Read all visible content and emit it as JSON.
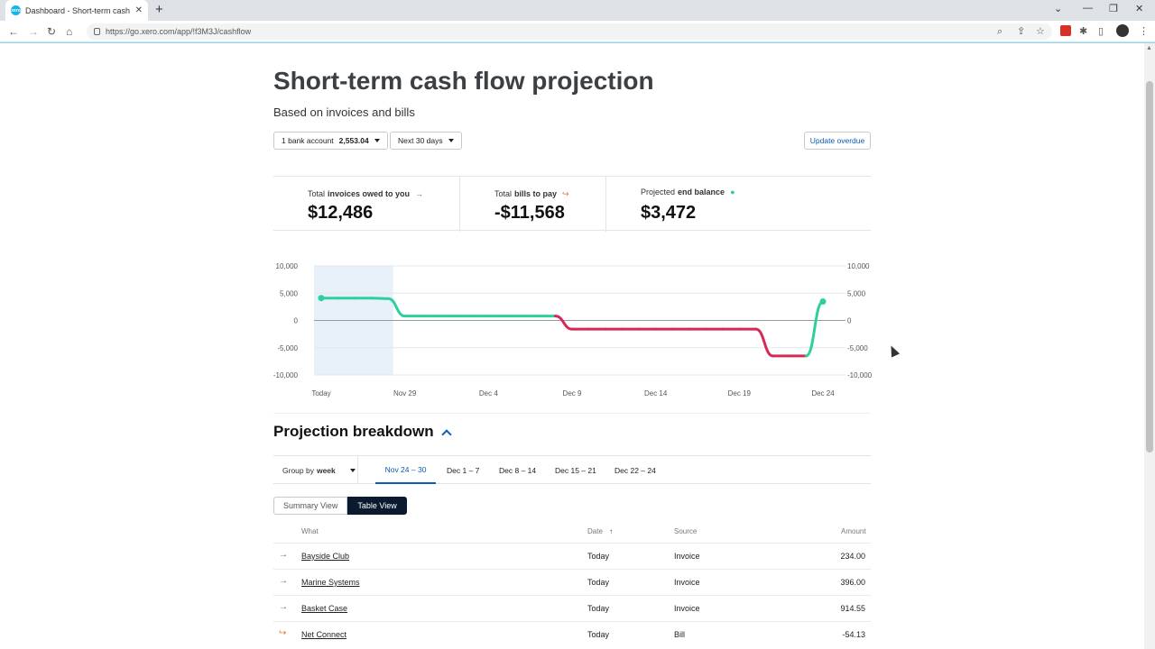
{
  "browser": {
    "tab_title": "Dashboard - Short-term cash flo",
    "favicon_text": "xero",
    "url": "https://go.xero.com/app/!f3M3J/cashflow"
  },
  "page": {
    "title": "Short-term cash flow projection",
    "subtitle": "Based on invoices and bills",
    "bank_account_label": "1 bank account",
    "bank_account_balance": "2,553.04",
    "period_label": "Next 30 days",
    "update_button": "Update overdue"
  },
  "summary": {
    "invoices": {
      "label_prefix": "Total",
      "label_bold": "invoices owed to you",
      "value": "$12,486",
      "icon": "arrow-in-icon",
      "color": "#5a6a8a"
    },
    "bills": {
      "label_prefix": "Total",
      "label_bold": "bills to pay",
      "value": "-$11,568",
      "icon": "arrow-out-icon",
      "color": "#e8743b"
    },
    "balance": {
      "label_prefix": "Projected",
      "label_bold": "end balance",
      "value": "$3,472",
      "icon": "balance-dot-icon",
      "color": "#2ccf9d"
    }
  },
  "chart_data": {
    "type": "line",
    "y_ticks": [
      "10,000",
      "5,000",
      "0",
      "-5,000",
      "-10,000"
    ],
    "ylim": [
      -10000,
      10000
    ],
    "x_ticks": [
      "Today",
      "Nov 29",
      "Dec 4",
      "Dec 9",
      "Dec 14",
      "Dec 19",
      "Dec 24"
    ],
    "series": [
      {
        "x": [
          "Nov 24",
          "Nov 25",
          "Nov 26",
          "Nov 27",
          "Nov 28",
          "Nov 29",
          "Nov 30",
          "Dec 1",
          "Dec 2",
          "Dec 3",
          "Dec 4",
          "Dec 5",
          "Dec 6",
          "Dec 7",
          "Dec 8",
          "Dec 9",
          "Dec 10",
          "Dec 11",
          "Dec 12",
          "Dec 13",
          "Dec 14",
          "Dec 15",
          "Dec 16",
          "Dec 17",
          "Dec 18",
          "Dec 19",
          "Dec 20",
          "Dec 21",
          "Dec 22",
          "Dec 23",
          "Dec 24"
        ],
        "values": [
          4100,
          4100,
          4100,
          4100,
          4000,
          800,
          800,
          800,
          800,
          800,
          800,
          800,
          800,
          800,
          800,
          -1600,
          -1600,
          -1600,
          -1600,
          -1600,
          -1600,
          -1600,
          -1600,
          -1600,
          -1600,
          -1600,
          -1600,
          -6500,
          -6500,
          -6500,
          3472
        ]
      }
    ],
    "colors": {
      "positive": "#2ccf9d",
      "negative": "#d52a55",
      "highlight": "#e8f1f9"
    }
  },
  "breakdown": {
    "title": "Projection breakdown",
    "group_by_label": "Group by",
    "group_by_value": "week",
    "weeks": [
      "Nov 24 – 30",
      "Dec 1 – 7",
      "Dec 8 – 14",
      "Dec 15 – 21",
      "Dec 22 – 24"
    ],
    "view_summary": "Summary View",
    "view_table": "Table View",
    "columns": {
      "what": "What",
      "date": "Date",
      "source": "Source",
      "amount": "Amount"
    },
    "rows": [
      {
        "what": "Bayside Club",
        "date": "Today",
        "source": "Invoice",
        "amount": "234.00",
        "icon": "arrow-in-icon"
      },
      {
        "what": "Marine Systems",
        "date": "Today",
        "source": "Invoice",
        "amount": "396.00",
        "icon": "arrow-in-icon"
      },
      {
        "what": "Basket Case",
        "date": "Today",
        "source": "Invoice",
        "amount": "914.55",
        "icon": "arrow-in-icon"
      },
      {
        "what": "Net Connect",
        "date": "Today",
        "source": "Bill",
        "amount": "-54.13",
        "icon": "arrow-out-icon"
      }
    ]
  }
}
